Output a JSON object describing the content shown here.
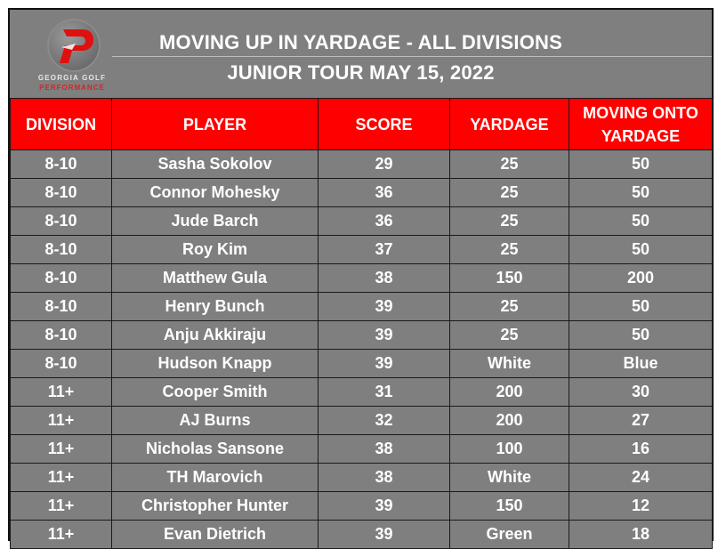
{
  "header": {
    "title": "MOVING UP IN YARDAGE -  ALL DIVISIONS",
    "subtitle": "JUNIOR TOUR MAY 15, 2022"
  },
  "logo": {
    "icon": "stylized-p-logo-icon",
    "line1": "GEORGIA GOLF",
    "line2": "PERFORMANCE",
    "accent_color": "#e01010"
  },
  "colors": {
    "header_bg": "#ff0000",
    "body_bg": "#7f7f7f",
    "text": "#ffffff"
  },
  "table": {
    "columns": [
      "DIVISION",
      "PLAYER",
      "SCORE",
      "YARDAGE",
      "MOVING ONTO YARDAGE"
    ],
    "rows": [
      [
        "8-10",
        "Sasha Sokolov",
        "29",
        "25",
        "50"
      ],
      [
        "8-10",
        "Connor Mohesky",
        "36",
        "25",
        "50"
      ],
      [
        "8-10",
        "Jude Barch",
        "36",
        "25",
        "50"
      ],
      [
        "8-10",
        "Roy Kim",
        "37",
        "25",
        "50"
      ],
      [
        "8-10",
        "Matthew Gula",
        "38",
        "150",
        "200"
      ],
      [
        "8-10",
        "Henry Bunch",
        "39",
        "25",
        "50"
      ],
      [
        "8-10",
        "Anju Akkiraju",
        "39",
        "25",
        "50"
      ],
      [
        "8-10",
        "Hudson Knapp",
        "39",
        "White",
        "Blue"
      ],
      [
        "11+",
        "Cooper Smith",
        "31",
        "200",
        "30"
      ],
      [
        "11+",
        "AJ Burns",
        "32",
        "200",
        "27"
      ],
      [
        "11+",
        "Nicholas Sansone",
        "38",
        "100",
        "16"
      ],
      [
        "11+",
        "TH Marovich",
        "38",
        "White",
        "24"
      ],
      [
        "11+",
        "Christopher Hunter",
        "39",
        "150",
        "12"
      ],
      [
        "11+",
        "Evan Dietrich",
        "39",
        "Green",
        "18"
      ]
    ]
  }
}
